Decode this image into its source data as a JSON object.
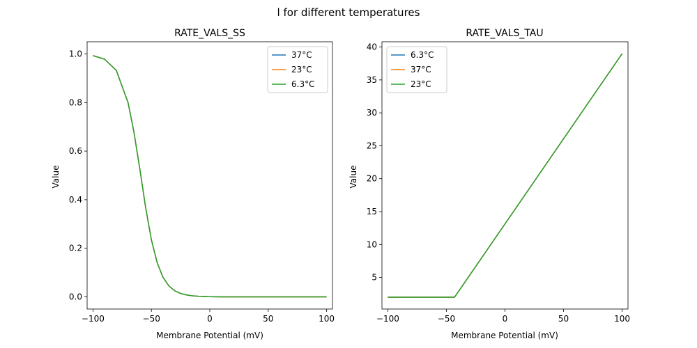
{
  "figure": {
    "suptitle": "l for different temperatures"
  },
  "colors": {
    "c0": "#1f77b4",
    "c1": "#ff7f0e",
    "c2": "#2ca02c"
  },
  "chart_data": [
    {
      "type": "line",
      "title": "RATE_VALS_SS",
      "xlabel": "Membrane Potential (mV)",
      "ylabel": "Value",
      "xlim": [
        -105,
        105
      ],
      "ylim": [
        -0.05,
        1.05
      ],
      "xticks": [
        -100,
        -50,
        0,
        50,
        100
      ],
      "yticks": [
        0.0,
        0.2,
        0.4,
        0.6,
        0.8,
        1.0
      ],
      "ytick_format": 1,
      "legend_position": "top-right",
      "x": [
        -100,
        -90,
        -80,
        -70,
        -65,
        -60,
        -55,
        -50,
        -45,
        -40,
        -35,
        -30,
        -25,
        -20,
        -15,
        -10,
        -5,
        0,
        10,
        20,
        40,
        60,
        80,
        100
      ],
      "series": [
        {
          "name": "37°C",
          "color": "#1f77b4",
          "values": [
            0.993,
            0.978,
            0.932,
            0.8,
            0.68,
            0.53,
            0.37,
            0.235,
            0.14,
            0.08,
            0.045,
            0.025,
            0.014,
            0.008,
            0.0045,
            0.0025,
            0.0014,
            0.0008,
            0.0003,
            0.0001,
            0.0,
            0.0,
            0.0,
            0.0
          ]
        },
        {
          "name": "23°C",
          "color": "#ff7f0e",
          "values": [
            0.993,
            0.978,
            0.932,
            0.8,
            0.68,
            0.53,
            0.37,
            0.235,
            0.14,
            0.08,
            0.045,
            0.025,
            0.014,
            0.008,
            0.0045,
            0.0025,
            0.0014,
            0.0008,
            0.0003,
            0.0001,
            0.0,
            0.0,
            0.0,
            0.0
          ]
        },
        {
          "name": "6.3°C",
          "color": "#2ca02c",
          "values": [
            0.993,
            0.978,
            0.932,
            0.8,
            0.68,
            0.53,
            0.37,
            0.235,
            0.14,
            0.08,
            0.045,
            0.025,
            0.014,
            0.008,
            0.0045,
            0.0025,
            0.0014,
            0.0008,
            0.0003,
            0.0001,
            0.0,
            0.0,
            0.0,
            0.0
          ]
        }
      ]
    },
    {
      "type": "line",
      "title": "RATE_VALS_TAU",
      "xlabel": "Membrane Potential (mV)",
      "ylabel": "Value",
      "xlim": [
        -105,
        105
      ],
      "ylim": [
        0.2,
        40.8
      ],
      "xticks": [
        -100,
        -50,
        0,
        50,
        100
      ],
      "yticks": [
        5,
        10,
        15,
        20,
        25,
        30,
        35,
        40
      ],
      "ytick_format": 0,
      "legend_position": "top-left",
      "x": [
        -100,
        -43,
        100
      ],
      "series": [
        {
          "name": "6.3°C",
          "color": "#1f77b4",
          "values": [
            2.0,
            2.0,
            39.0
          ]
        },
        {
          "name": "37°C",
          "color": "#ff7f0e",
          "values": [
            2.0,
            2.0,
            39.0
          ]
        },
        {
          "name": "23°C",
          "color": "#2ca02c",
          "values": [
            2.0,
            2.0,
            39.0
          ]
        }
      ]
    }
  ]
}
